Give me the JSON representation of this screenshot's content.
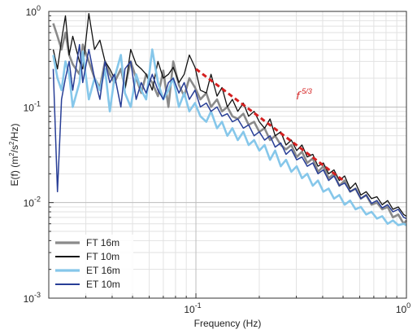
{
  "chart_data": {
    "type": "line",
    "xlabel": "Frequency (Hz)",
    "ylabel_parts": {
      "base": "E(f)  (m",
      "sup1": "2",
      "mid": "/s",
      "sup2": "2",
      "end": "/Hz)"
    },
    "x_scale": "log",
    "y_scale": "log",
    "xlim": [
      0.02,
      1
    ],
    "ylim": [
      0.001,
      1
    ],
    "grid": true,
    "legend_position": "bottom-left",
    "x_ticks": [
      {
        "value": 0.1,
        "base": "10",
        "exp": "-1"
      },
      {
        "value": 1,
        "base": "10",
        "exp": "0"
      }
    ],
    "y_ticks": [
      {
        "value": 1,
        "base": "10",
        "exp": "0"
      },
      {
        "value": 0.1,
        "base": "10",
        "exp": "-1"
      },
      {
        "value": 0.01,
        "base": "10",
        "exp": "-2"
      },
      {
        "value": 0.001,
        "base": "10",
        "exp": "-3"
      }
    ],
    "annotation": {
      "text": "f",
      "sup": "-5/3",
      "x": 0.3,
      "y": 0.12
    },
    "reference_line": {
      "label": "f^-5/3",
      "color": "#d42020",
      "x": [
        0.1,
        0.5
      ],
      "y": [
        0.25,
        0.0171
      ]
    },
    "series": [
      {
        "name": "FT 16m",
        "color": "#8a8a8a",
        "width": 2.6,
        "x": [
          0.021,
          0.022,
          0.023,
          0.024,
          0.025,
          0.026,
          0.028,
          0.029,
          0.031,
          0.033,
          0.035,
          0.037,
          0.039,
          0.041,
          0.044,
          0.046,
          0.049,
          0.052,
          0.055,
          0.058,
          0.062,
          0.066,
          0.07,
          0.074,
          0.078,
          0.083,
          0.088,
          0.093,
          0.099,
          0.105,
          0.112,
          0.118,
          0.126,
          0.133,
          0.141,
          0.149,
          0.158,
          0.168,
          0.178,
          0.189,
          0.2,
          0.212,
          0.225,
          0.238,
          0.253,
          0.268,
          0.284,
          0.301,
          0.319,
          0.338,
          0.359,
          0.38,
          0.403,
          0.427,
          0.453,
          0.48,
          0.509,
          0.54,
          0.573,
          0.607,
          0.644,
          0.683,
          0.724,
          0.767,
          0.814,
          0.863,
          0.915,
          0.97,
          1.0
        ],
        "y": [
          0.75,
          0.55,
          0.4,
          0.6,
          0.35,
          0.28,
          0.22,
          0.45,
          0.3,
          0.2,
          0.16,
          0.3,
          0.22,
          0.18,
          0.25,
          0.16,
          0.3,
          0.2,
          0.14,
          0.22,
          0.18,
          0.13,
          0.24,
          0.1,
          0.3,
          0.17,
          0.13,
          0.2,
          0.16,
          0.12,
          0.14,
          0.1,
          0.12,
          0.09,
          0.1,
          0.08,
          0.075,
          0.085,
          0.065,
          0.07,
          0.055,
          0.06,
          0.045,
          0.05,
          0.04,
          0.036,
          0.04,
          0.03,
          0.034,
          0.026,
          0.029,
          0.021,
          0.024,
          0.018,
          0.02,
          0.015,
          0.017,
          0.013,
          0.014,
          0.011,
          0.012,
          0.0095,
          0.01,
          0.0085,
          0.009,
          0.007,
          0.0075,
          0.006,
          0.0065
        ]
      },
      {
        "name": "FT 10m",
        "color": "#111111",
        "width": 1.3,
        "x": [
          0.021,
          0.022,
          0.023,
          0.024,
          0.025,
          0.026,
          0.028,
          0.029,
          0.031,
          0.033,
          0.035,
          0.037,
          0.039,
          0.041,
          0.044,
          0.046,
          0.049,
          0.052,
          0.055,
          0.058,
          0.062,
          0.066,
          0.07,
          0.074,
          0.078,
          0.083,
          0.088,
          0.093,
          0.099,
          0.105,
          0.112,
          0.118,
          0.126,
          0.133,
          0.141,
          0.149,
          0.158,
          0.168,
          0.178,
          0.189,
          0.2,
          0.212,
          0.225,
          0.238,
          0.253,
          0.268,
          0.284,
          0.301,
          0.319,
          0.338,
          0.359,
          0.38,
          0.403,
          0.427,
          0.453,
          0.48,
          0.509,
          0.54,
          0.573,
          0.607,
          0.644,
          0.683,
          0.724,
          0.767,
          0.814,
          0.863,
          0.915,
          0.97,
          1.0
        ],
        "y": [
          0.4,
          0.25,
          0.5,
          0.9,
          0.35,
          0.55,
          0.3,
          0.25,
          0.95,
          0.4,
          0.5,
          0.3,
          0.25,
          0.2,
          0.35,
          0.15,
          0.4,
          0.28,
          0.25,
          0.22,
          0.15,
          0.3,
          0.2,
          0.22,
          0.26,
          0.18,
          0.22,
          0.35,
          0.26,
          0.15,
          0.14,
          0.22,
          0.13,
          0.16,
          0.1,
          0.12,
          0.09,
          0.11,
          0.08,
          0.09,
          0.07,
          0.06,
          0.075,
          0.05,
          0.055,
          0.04,
          0.045,
          0.035,
          0.04,
          0.03,
          0.032,
          0.024,
          0.026,
          0.02,
          0.022,
          0.017,
          0.019,
          0.014,
          0.016,
          0.012,
          0.013,
          0.011,
          0.0115,
          0.0095,
          0.0105,
          0.0085,
          0.009,
          0.0075,
          0.0072
        ]
      },
      {
        "name": "ET 16m",
        "color": "#86c7ea",
        "width": 2.6,
        "x": [
          0.021,
          0.022,
          0.023,
          0.024,
          0.025,
          0.026,
          0.028,
          0.029,
          0.031,
          0.033,
          0.035,
          0.037,
          0.039,
          0.041,
          0.044,
          0.046,
          0.049,
          0.052,
          0.055,
          0.058,
          0.062,
          0.066,
          0.07,
          0.074,
          0.078,
          0.083,
          0.088,
          0.093,
          0.099,
          0.105,
          0.112,
          0.118,
          0.126,
          0.133,
          0.141,
          0.149,
          0.158,
          0.168,
          0.178,
          0.189,
          0.2,
          0.212,
          0.225,
          0.238,
          0.253,
          0.268,
          0.284,
          0.301,
          0.319,
          0.338,
          0.359,
          0.38,
          0.403,
          0.427,
          0.453,
          0.48,
          0.509,
          0.54,
          0.573,
          0.607,
          0.644,
          0.683,
          0.724,
          0.767,
          0.814,
          0.863,
          0.915,
          0.97,
          1.0
        ],
        "y": [
          0.35,
          0.2,
          0.15,
          0.3,
          0.22,
          0.1,
          0.18,
          0.38,
          0.12,
          0.2,
          0.15,
          0.25,
          0.09,
          0.2,
          0.35,
          0.14,
          0.1,
          0.22,
          0.15,
          0.12,
          0.4,
          0.18,
          0.12,
          0.15,
          0.2,
          0.1,
          0.14,
          0.09,
          0.11,
          0.08,
          0.07,
          0.09,
          0.06,
          0.07,
          0.05,
          0.06,
          0.045,
          0.055,
          0.04,
          0.045,
          0.035,
          0.04,
          0.028,
          0.035,
          0.024,
          0.028,
          0.021,
          0.024,
          0.018,
          0.02,
          0.015,
          0.017,
          0.013,
          0.014,
          0.011,
          0.012,
          0.0095,
          0.0105,
          0.0085,
          0.009,
          0.0075,
          0.008,
          0.0068,
          0.0072,
          0.006,
          0.0065,
          0.0058,
          0.006,
          0.0058
        ]
      },
      {
        "name": "ET 10m",
        "color": "#283e96",
        "width": 1.5,
        "x": [
          0.021,
          0.022,
          0.023,
          0.024,
          0.025,
          0.026,
          0.028,
          0.029,
          0.031,
          0.033,
          0.035,
          0.037,
          0.039,
          0.041,
          0.044,
          0.046,
          0.049,
          0.052,
          0.055,
          0.058,
          0.062,
          0.066,
          0.07,
          0.074,
          0.078,
          0.083,
          0.088,
          0.093,
          0.099,
          0.105,
          0.112,
          0.118,
          0.126,
          0.133,
          0.141,
          0.149,
          0.158,
          0.168,
          0.178,
          0.189,
          0.2,
          0.212,
          0.225,
          0.238,
          0.253,
          0.268,
          0.284,
          0.301,
          0.319,
          0.338,
          0.359,
          0.38,
          0.403,
          0.427,
          0.453,
          0.48,
          0.509,
          0.54,
          0.573,
          0.607,
          0.644,
          0.683,
          0.724,
          0.767,
          0.814,
          0.863,
          0.915,
          0.97,
          1.0
        ],
        "y": [
          0.25,
          0.013,
          0.12,
          0.2,
          0.3,
          0.15,
          0.45,
          0.18,
          0.4,
          0.2,
          0.12,
          0.3,
          0.18,
          0.22,
          0.1,
          0.25,
          0.3,
          0.12,
          0.18,
          0.14,
          0.22,
          0.15,
          0.12,
          0.18,
          0.2,
          0.14,
          0.18,
          0.12,
          0.15,
          0.1,
          0.11,
          0.09,
          0.1,
          0.08,
          0.085,
          0.07,
          0.075,
          0.06,
          0.065,
          0.05,
          0.055,
          0.045,
          0.05,
          0.038,
          0.042,
          0.032,
          0.036,
          0.028,
          0.03,
          0.024,
          0.026,
          0.02,
          0.022,
          0.017,
          0.019,
          0.015,
          0.016,
          0.013,
          0.014,
          0.011,
          0.012,
          0.0098,
          0.0105,
          0.0088,
          0.0095,
          0.008,
          0.0085,
          0.007,
          0.0068
        ]
      }
    ]
  }
}
